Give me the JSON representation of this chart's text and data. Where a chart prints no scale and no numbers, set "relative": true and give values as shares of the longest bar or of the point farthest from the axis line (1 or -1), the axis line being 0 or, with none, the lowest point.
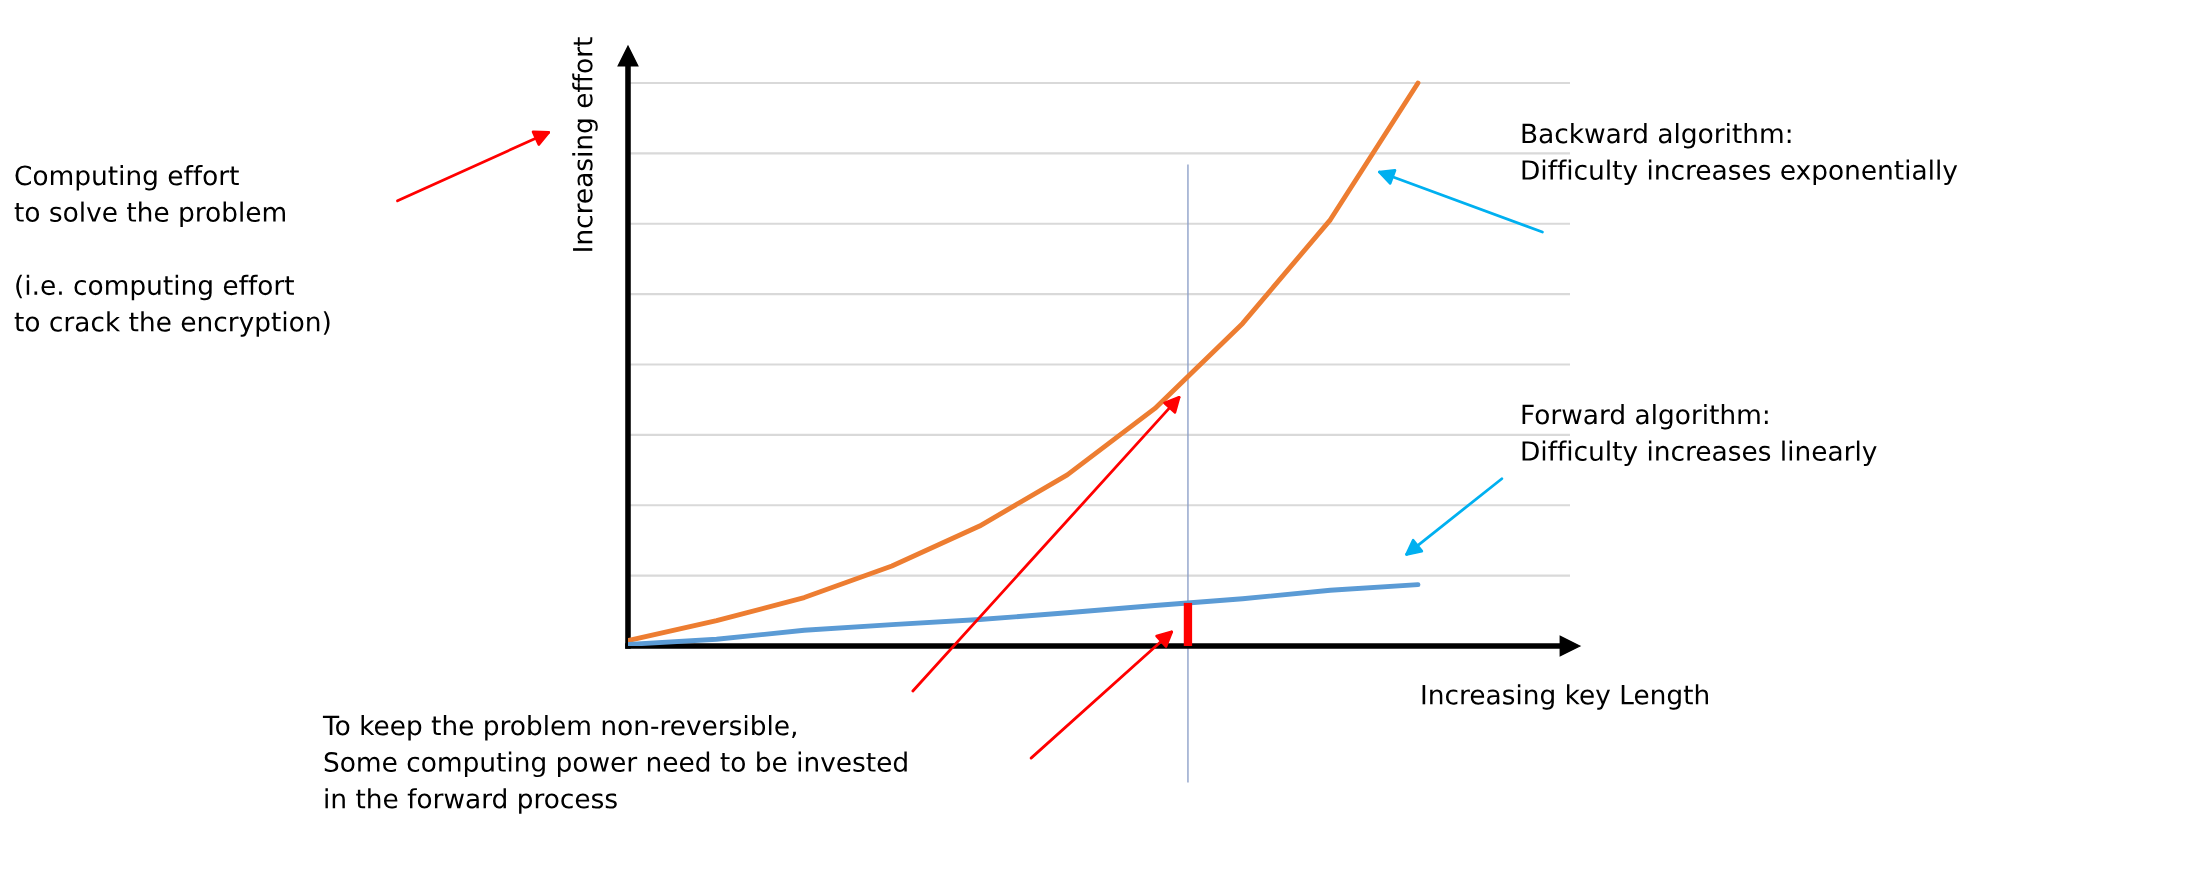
{
  "chart_data": {
    "type": "line",
    "relative": true,
    "xlabel": "Increasing key Length",
    "ylabel": "Increasing effort",
    "categories": [
      null,
      null,
      null,
      null,
      null,
      null,
      null,
      null,
      null,
      null
    ],
    "series": [
      {
        "color": "#ed7d31",
        "values": [
          0.01,
          0.045,
          0.086,
          0.142,
          0.213,
          0.304,
          0.422,
          0.573,
          0.757,
          1
        ]
      },
      {
        "color": "#5b9bd5",
        "values": [
          0.003,
          0.012,
          0.028,
          0.038,
          0.047,
          0.059,
          0.072,
          0.084,
          0.099,
          0.109
        ]
      }
    ],
    "grid": "y",
    "legend": false,
    "marker": "none",
    "line_style": "solid",
    "annotations": [
      "Computing effort\nto solve the problem\n\n(i.e. computing effort\nto crack the encryption)",
      "Backward algorithm:\nDifficulty increases exponentially",
      "Forward algorithm:\nDifficulty increases linearly",
      "To keep the problem non-reversible,\nSome computing power need to be invested\nin the forward process"
    ]
  }
}
